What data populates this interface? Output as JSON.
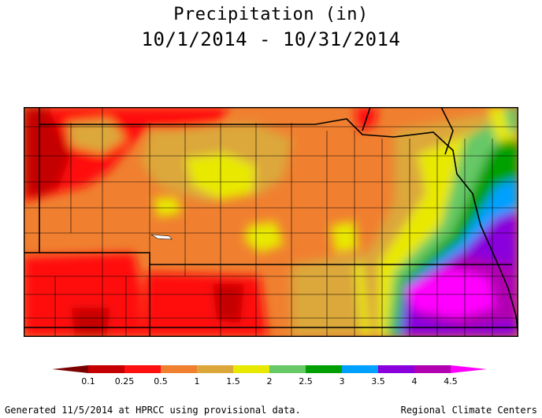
{
  "title": {
    "line1": "Precipitation (in)",
    "line2": "10/1/2014 - 10/31/2014"
  },
  "legend": {
    "colors": [
      "#7a0000",
      "#c40000",
      "#ff1010",
      "#f08030",
      "#dca73a",
      "#e8e800",
      "#66c866",
      "#00a000",
      "#00a0ff",
      "#8a00dc",
      "#b000b0",
      "#ff00ff"
    ],
    "labels": [
      "0.1",
      "0.25",
      "0.5",
      "1",
      "1.5",
      "2",
      "2.5",
      "3",
      "3.5",
      "4",
      "4.5"
    ]
  },
  "footer": {
    "left": "Generated 11/5/2014 at HPRCC using provisional data.",
    "right": "Regional Climate Centers"
  }
}
